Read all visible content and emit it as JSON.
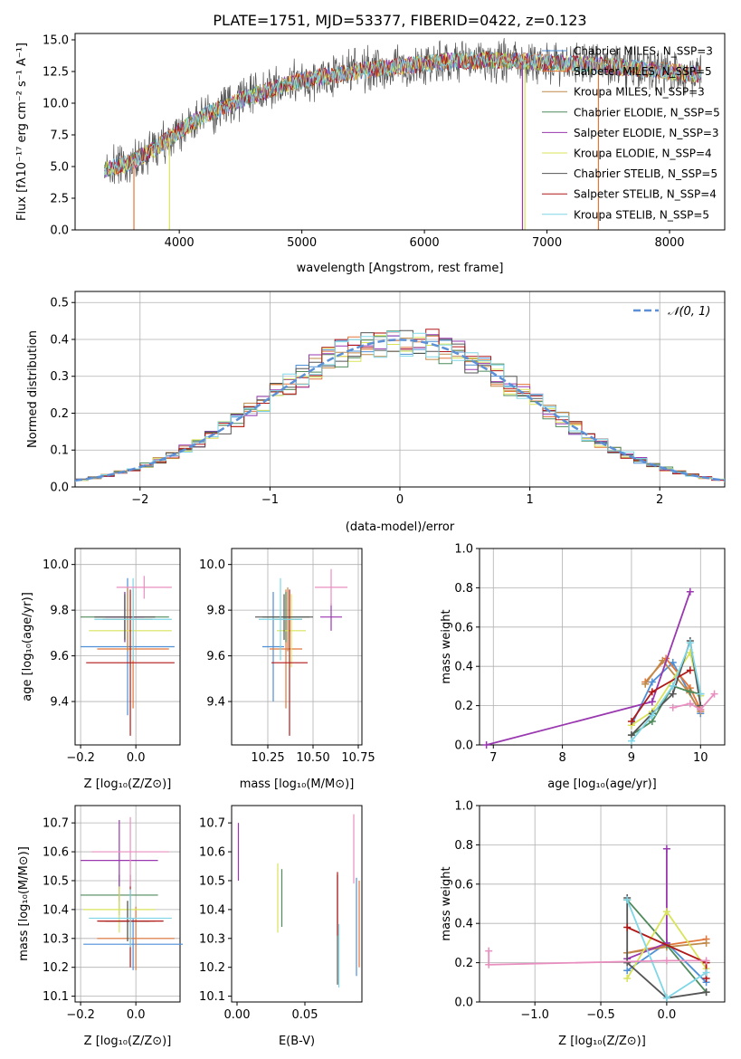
{
  "title": "PLATE=1751, MJD=53377, FIBERID=0422, z=0.123",
  "colors": [
    "#4f8fd6",
    "#e2763a",
    "#bf8a4a",
    "#4e8a5a",
    "#9a38b0",
    "#d9e35a",
    "#555555",
    "#b01818",
    "#7fd6e6"
  ],
  "chart_data": [
    {
      "id": "spectrum",
      "type": "line",
      "xlabel": "wavelength [Angstrom, rest frame]",
      "ylabel": "Flux [fλ10⁻¹⁷ erg cm⁻² s⁻¹ A⁻¹]",
      "xlim": [
        3150,
        8450
      ],
      "ylim": [
        0,
        15.5
      ],
      "xticks": [
        "4000",
        "5000",
        "6000",
        "7000",
        "8000"
      ],
      "yticks": [
        "0.0",
        "2.5",
        "5.0",
        "7.5",
        "10.0",
        "12.5",
        "15.0"
      ],
      "grid": false,
      "legend_position": "upper-right",
      "series": [
        {
          "name": "Chabrier MILES, N_SSP=3"
        },
        {
          "name": "Salpeter MILES, N_SSP=5"
        },
        {
          "name": "Kroupa MILES, N_SSP=3"
        },
        {
          "name": "Chabrier ELODIE, N_SSP=5"
        },
        {
          "name": "Salpeter ELODIE, N_SSP=3"
        },
        {
          "name": "Kroupa ELODIE, N_SSP=4"
        },
        {
          "name": "Chabrier STELIB, N_SSP=5"
        },
        {
          "name": "Salpeter STELIB, N_SSP=4"
        },
        {
          "name": "Kroupa STELIB, N_SSP=5"
        }
      ],
      "continuum": {
        "x": [
          3400,
          3600,
          3800,
          4000,
          4200,
          4500,
          5000,
          5500,
          5900,
          6200,
          6600,
          7000,
          7400,
          7800,
          8200
        ],
        "y": [
          4.8,
          5.3,
          6.4,
          7.8,
          9.0,
          10.3,
          11.8,
          12.6,
          13.0,
          13.3,
          13.4,
          13.2,
          13.0,
          12.7,
          12.3
        ]
      },
      "data_range": [
        3390,
        8260
      ]
    },
    {
      "id": "residuals",
      "type": "histogram",
      "xlabel": "(data-model)/error",
      "ylabel": "Normed distribution",
      "xlim": [
        -2.5,
        2.5
      ],
      "ylim": [
        0,
        0.53
      ],
      "xticks": [
        "−2",
        "−1",
        "0",
        "1",
        "2"
      ],
      "xtick_values": [
        -2,
        -1,
        0,
        1,
        2
      ],
      "yticks": [
        "0.0",
        "0.1",
        "0.2",
        "0.3",
        "0.4",
        "0.5"
      ],
      "ytick_values": [
        0,
        0.1,
        0.2,
        0.3,
        0.4,
        0.5
      ],
      "grid": true,
      "bin_width": 0.1,
      "reference": {
        "label": "𝒩(0, 1)",
        "type": "gaussian",
        "mean": 0,
        "sigma": 1,
        "style": "dashed"
      },
      "legend_position": "upper-right"
    },
    {
      "id": "age_vs_Z",
      "type": "errorbar",
      "xlabel": "Z [log₁₀(Z/Z⊙)]",
      "ylabel": "age  [log₁₀(age/yr)]",
      "xlim": [
        -0.22,
        0.16
      ],
      "ylim": [
        9.21,
        10.07
      ],
      "xticks": [
        "−0.2",
        "0.0"
      ],
      "xtick_values": [
        -0.2,
        0.0
      ],
      "yticks": [
        "9.4",
        "9.6",
        "9.8",
        "10.0"
      ],
      "ytick_values": [
        9.4,
        9.6,
        9.8,
        10.0
      ],
      "grid": true,
      "points": [
        {
          "x": -0.03,
          "xerr": 0.17,
          "y": 9.64,
          "yerr": 0.3
        },
        {
          "x": -0.01,
          "xerr": 0.13,
          "y": 9.63,
          "yerr": 0.26
        },
        {
          "x": -0.03,
          "xerr": 0.09,
          "y": 9.76,
          "yerr": 0.14
        },
        {
          "x": -0.04,
          "xerr": 0.16,
          "y": 9.77,
          "yerr": 0.11
        },
        {
          "x": -0.04,
          "xerr": 0.07,
          "y": 9.77,
          "yerr": 0.11
        },
        {
          "x": -0.02,
          "xerr": 0.15,
          "y": 9.71,
          "yerr": 0.16
        },
        {
          "x": -0.04,
          "xerr": 0.11,
          "y": 9.77,
          "yerr": 0.1
        },
        {
          "x": -0.02,
          "xerr": 0.16,
          "y": 9.57,
          "yerr": 0.32
        },
        {
          "x": -0.01,
          "xerr": 0.14,
          "y": 9.76,
          "yerr": 0.18
        },
        {
          "x": 0.03,
          "xerr": 0.1,
          "y": 9.9,
          "yerr": 0.05,
          "color": "#e88fbf"
        }
      ]
    },
    {
      "id": "age_vs_mass",
      "type": "errorbar",
      "xlabel": "mass [log₁₀(M/M⊙)]",
      "ylabel": "",
      "xlim": [
        10.05,
        10.77
      ],
      "ylim": [
        9.21,
        10.07
      ],
      "xticks": [
        "10.25",
        "10.50",
        "10.75"
      ],
      "xtick_values": [
        10.25,
        10.5,
        10.75
      ],
      "yticks": [
        "9.4",
        "9.6",
        "9.8",
        "10.0"
      ],
      "ytick_values": [
        9.4,
        9.6,
        9.8,
        10.0
      ],
      "grid": true,
      "points": [
        {
          "x": 10.28,
          "xerr": 0.06,
          "y": 9.64,
          "yerr": 0.24
        },
        {
          "x": 10.35,
          "xerr": 0.09,
          "y": 9.63,
          "yerr": 0.26
        },
        {
          "x": 10.36,
          "xerr": 0.08,
          "y": 9.76,
          "yerr": 0.14
        },
        {
          "x": 10.35,
          "xerr": 0.13,
          "y": 9.77,
          "yerr": 0.11
        },
        {
          "x": 10.6,
          "xerr": 0.06,
          "y": 9.77,
          "yerr": 0.06
        },
        {
          "x": 10.38,
          "xerr": 0.08,
          "y": 9.71,
          "yerr": 0.16
        },
        {
          "x": 10.34,
          "xerr": 0.16,
          "y": 9.77,
          "yerr": 0.1
        },
        {
          "x": 10.37,
          "xerr": 0.1,
          "y": 9.57,
          "yerr": 0.32
        },
        {
          "x": 10.32,
          "xerr": 0.12,
          "y": 9.76,
          "yerr": 0.18
        },
        {
          "x": 10.6,
          "xerr": 0.09,
          "y": 9.9,
          "yerr": 0.08,
          "color": "#e88fbf"
        }
      ]
    },
    {
      "id": "weight_vs_age",
      "type": "line",
      "xlabel": "age  [log₁₀(age/yr)]",
      "ylabel": "mass weight",
      "xlim": [
        6.8,
        10.35
      ],
      "ylim": [
        0,
        1.0
      ],
      "xticks": [
        "7",
        "8",
        "9",
        "10"
      ],
      "xtick_values": [
        7,
        8,
        9,
        10
      ],
      "yticks": [
        "0.0",
        "0.2",
        "0.4",
        "0.6",
        "0.8",
        "1.0"
      ],
      "ytick_values": [
        0,
        0.2,
        0.4,
        0.6,
        0.8,
        1.0
      ],
      "grid": true,
      "series": [
        {
          "x": [
            9.0,
            9.3,
            9.6,
            10.0
          ],
          "y": [
            0.1,
            0.32,
            0.42,
            0.16
          ]
        },
        {
          "x": [
            9.2,
            9.5,
            9.85,
            10.0
          ],
          "y": [
            0.32,
            0.44,
            0.29,
            0.18
          ]
        },
        {
          "x": [
            9.2,
            9.45,
            9.8,
            10.0
          ],
          "y": [
            0.31,
            0.43,
            0.28,
            0.17
          ]
        },
        {
          "x": [
            9.0,
            9.3,
            9.6,
            9.85,
            10.0
          ],
          "y": [
            0.05,
            0.12,
            0.3,
            0.27,
            0.26
          ]
        },
        {
          "x": [
            6.9,
            9.3,
            9.85
          ],
          "y": [
            0.0,
            0.22,
            0.78
          ]
        },
        {
          "x": [
            9.0,
            9.3,
            9.85,
            10.0
          ],
          "y": [
            0.1,
            0.17,
            0.47,
            0.25
          ]
        },
        {
          "x": [
            9.0,
            9.3,
            9.6,
            9.85,
            10.0
          ],
          "y": [
            0.05,
            0.16,
            0.26,
            0.53,
            0.2
          ]
        },
        {
          "x": [
            9.0,
            9.3,
            9.85
          ],
          "y": [
            0.12,
            0.27,
            0.38
          ]
        },
        {
          "x": [
            9.0,
            9.3,
            9.6,
            9.85,
            10.0
          ],
          "y": [
            0.02,
            0.15,
            0.3,
            0.52,
            0.26
          ]
        },
        {
          "x": [
            9.6,
            9.85,
            10.0,
            10.2
          ],
          "y": [
            0.19,
            0.21,
            0.18,
            0.26
          ],
          "color": "#e88fbf"
        }
      ]
    },
    {
      "id": "mass_vs_Z",
      "type": "errorbar",
      "xlabel": "Z [log₁₀(Z/Z⊙)]",
      "ylabel": "mass [log₁₀(M/M⊙)]",
      "xlim": [
        -0.22,
        0.16
      ],
      "ylim": [
        10.08,
        10.76
      ],
      "xticks": [
        "−0.2",
        "0.0"
      ],
      "xtick_values": [
        -0.2,
        0.0
      ],
      "yticks": [
        "10.1",
        "10.2",
        "10.3",
        "10.4",
        "10.5",
        "10.6",
        "10.7"
      ],
      "ytick_values": [
        10.1,
        10.2,
        10.3,
        10.4,
        10.5,
        10.6,
        10.7
      ],
      "grid": true,
      "points": [
        {
          "x": -0.01,
          "xerr": 0.18,
          "y": 10.28,
          "yerr": 0.09
        },
        {
          "x": 0.0,
          "xerr": 0.14,
          "y": 10.3,
          "yerr": 0.11
        },
        {
          "x": -0.03,
          "xerr": 0.1,
          "y": 10.36,
          "yerr": 0.07
        },
        {
          "x": -0.06,
          "xerr": 0.14,
          "y": 10.45,
          "yerr": 0.07
        },
        {
          "x": -0.06,
          "xerr": 0.14,
          "y": 10.57,
          "yerr": 0.14
        },
        {
          "x": -0.06,
          "xerr": 0.13,
          "y": 10.4,
          "yerr": 0.08
        },
        {
          "x": -0.03,
          "xerr": 0.08,
          "y": 10.36,
          "yerr": 0.07
        },
        {
          "x": -0.02,
          "xerr": 0.12,
          "y": 10.36,
          "yerr": 0.16
        },
        {
          "x": -0.02,
          "xerr": 0.15,
          "y": 10.37,
          "yerr": 0.1
        },
        {
          "x": -0.02,
          "xerr": 0.14,
          "y": 10.6,
          "yerr": 0.12,
          "color": "#e88fbf"
        }
      ]
    },
    {
      "id": "mass_vs_ebv",
      "type": "errorbar",
      "xlabel": "E(B-V)",
      "ylabel": "",
      "xlim": [
        -0.004,
        0.092
      ],
      "ylim": [
        10.08,
        10.76
      ],
      "xticks": [
        "0.00",
        "0.05"
      ],
      "xtick_values": [
        0.0,
        0.05
      ],
      "yticks": [
        "10.1",
        "10.2",
        "10.3",
        "10.4",
        "10.5",
        "10.6",
        "10.7"
      ],
      "ytick_values": [
        10.1,
        10.2,
        10.3,
        10.4,
        10.5,
        10.6,
        10.7
      ],
      "grid": false,
      "points": [
        {
          "x": 0.088,
          "y": 10.34,
          "yerr": 0.17,
          "color": "#4f8fd6"
        },
        {
          "x": 0.09,
          "y": 10.35,
          "yerr": 0.15,
          "color": "#e2763a"
        },
        {
          "x": 0.033,
          "y": 10.44,
          "yerr": 0.1,
          "color": "#4e8a5a"
        },
        {
          "x": 0.001,
          "y": 10.6,
          "yerr": 0.1,
          "color": "#9a38b0"
        },
        {
          "x": 0.03,
          "y": 10.44,
          "yerr": 0.12,
          "color": "#d9e35a"
        },
        {
          "x": 0.074,
          "y": 10.33,
          "yerr": 0.19,
          "color": "#555555"
        },
        {
          "x": 0.074,
          "y": 10.42,
          "yerr": 0.11,
          "color": "#b01818"
        },
        {
          "x": 0.075,
          "y": 10.24,
          "yerr": 0.11,
          "color": "#7fd6e6"
        },
        {
          "x": 0.086,
          "y": 10.61,
          "yerr": 0.12,
          "color": "#e88fbf"
        }
      ]
    },
    {
      "id": "weight_vs_Z",
      "type": "line",
      "xlabel": "Z [log₁₀(Z/Z⊙)]",
      "ylabel": "mass weight",
      "xlim": [
        -1.42,
        0.44
      ],
      "ylim": [
        0,
        1.0
      ],
      "xticks": [
        "−1.0",
        "−0.5",
        "0.0"
      ],
      "xtick_values": [
        -1.0,
        -0.5,
        0.0
      ],
      "yticks": [
        "0.0",
        "0.2",
        "0.4",
        "0.6",
        "0.8",
        "1.0"
      ],
      "ytick_values": [
        0,
        0.2,
        0.4,
        0.6,
        0.8,
        1.0
      ],
      "grid": true,
      "series": [
        {
          "x": [
            -0.3,
            0.0,
            0.3
          ],
          "y": [
            0.16,
            0.3,
            0.1
          ]
        },
        {
          "x": [
            -0.3,
            0.0,
            0.3
          ],
          "y": [
            0.25,
            0.29,
            0.32
          ]
        },
        {
          "x": [
            -0.3,
            0.0,
            0.3
          ],
          "y": [
            0.25,
            0.28,
            0.3
          ]
        },
        {
          "x": [
            -0.3,
            0.0,
            0.3
          ],
          "y": [
            0.52,
            0.29,
            0.05
          ]
        },
        {
          "x": [
            -0.3,
            0.0,
            0.0
          ],
          "y": [
            0.22,
            0.3,
            0.78
          ]
        },
        {
          "x": [
            -0.3,
            0.0,
            0.3
          ],
          "y": [
            0.12,
            0.46,
            0.17
          ]
        },
        {
          "x": [
            -0.3,
            -0.3,
            0.0,
            0.3
          ],
          "y": [
            0.53,
            0.2,
            0.02,
            0.05
          ]
        },
        {
          "x": [
            -0.3,
            0.3,
            0.3
          ],
          "y": [
            0.38,
            0.2,
            0.12
          ]
        },
        {
          "x": [
            -0.3,
            0.0,
            0.3
          ],
          "y": [
            0.52,
            0.02,
            0.15
          ]
        },
        {
          "x": [
            -1.35,
            -1.35,
            0.0,
            0.3
          ],
          "y": [
            0.26,
            0.19,
            0.21,
            0.21
          ],
          "color": "#e88fbf"
        }
      ]
    }
  ]
}
